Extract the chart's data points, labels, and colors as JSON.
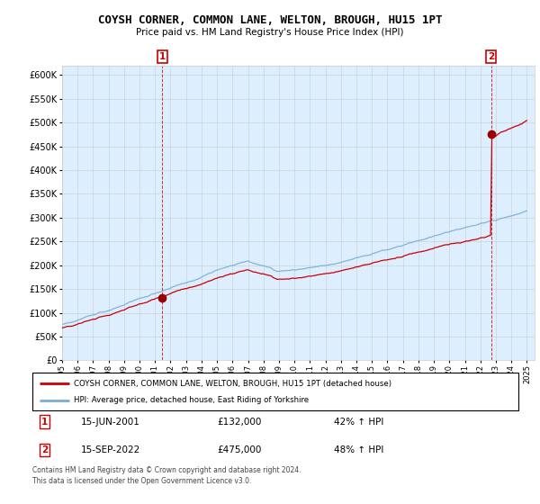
{
  "title": "COYSH CORNER, COMMON LANE, WELTON, BROUGH, HU15 1PT",
  "subtitle": "Price paid vs. HM Land Registry's House Price Index (HPI)",
  "ylim": [
    0,
    620000
  ],
  "yticks": [
    0,
    50000,
    100000,
    150000,
    200000,
    250000,
    300000,
    350000,
    400000,
    450000,
    500000,
    550000,
    600000
  ],
  "sale1_date": 2001.46,
  "sale1_price": 132000,
  "sale2_date": 2022.71,
  "sale2_price": 475000,
  "line_color_red": "#cc0000",
  "line_color_blue": "#7aadd4",
  "vline_color": "#cc0000",
  "grid_color": "#cccccc",
  "plot_bg_color": "#ddeeff",
  "background_color": "#ffffff",
  "legend_line1": "COYSH CORNER, COMMON LANE, WELTON, BROUGH, HU15 1PT (detached house)",
  "legend_line2": "HPI: Average price, detached house, East Riding of Yorkshire",
  "table_row1": [
    "1",
    "15-JUN-2001",
    "£132,000",
    "42% ↑ HPI"
  ],
  "table_row2": [
    "2",
    "15-SEP-2022",
    "£475,000",
    "48% ↑ HPI"
  ],
  "footnote": "Contains HM Land Registry data © Crown copyright and database right 2024.\nThis data is licensed under the Open Government Licence v3.0.",
  "xmin": 1995.0,
  "xmax": 2025.5
}
